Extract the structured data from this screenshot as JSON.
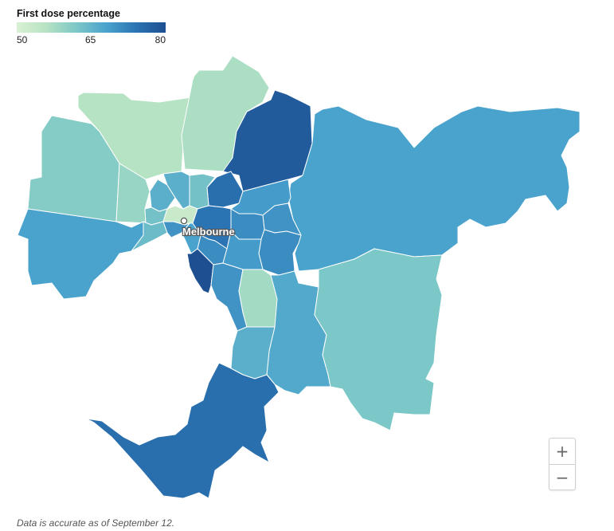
{
  "legend": {
    "title": "First dose percentage",
    "ticks": [
      "50",
      "65",
      "80"
    ],
    "scale": {
      "min": 50,
      "max": 80
    }
  },
  "map": {
    "city_label": "Melbourne",
    "regions": [
      {
        "id": "r01",
        "value": 56
      },
      {
        "id": "r02",
        "value": 57
      },
      {
        "id": "r03",
        "value": 61
      },
      {
        "id": "r04",
        "value": 59
      },
      {
        "id": "r05",
        "value": 78
      },
      {
        "id": "r06",
        "value": 68
      },
      {
        "id": "r07",
        "value": 68
      },
      {
        "id": "r08",
        "value": 66
      },
      {
        "id": "r09",
        "value": 75
      },
      {
        "id": "r10",
        "value": 69
      },
      {
        "id": "r11",
        "value": 70
      },
      {
        "id": "r12",
        "value": 71
      },
      {
        "id": "r13",
        "value": 66
      },
      {
        "id": "r14",
        "value": 63
      },
      {
        "id": "r15",
        "value": 63
      },
      {
        "id": "r16",
        "value": 64
      },
      {
        "id": "r17",
        "value": 53
      },
      {
        "id": "r18",
        "value": 74
      },
      {
        "id": "r19",
        "value": 71
      },
      {
        "id": "r20",
        "value": 68
      },
      {
        "id": "r21",
        "value": 70
      },
      {
        "id": "r22",
        "value": 71
      },
      {
        "id": "r23",
        "value": 69
      },
      {
        "id": "r24",
        "value": 80
      },
      {
        "id": "r25",
        "value": 70
      },
      {
        "id": "r26",
        "value": 67
      },
      {
        "id": "r27",
        "value": 58
      },
      {
        "id": "r28",
        "value": 66
      },
      {
        "id": "r29",
        "value": 62
      },
      {
        "id": "r30",
        "value": 66
      },
      {
        "id": "r31",
        "value": 75
      }
    ]
  },
  "zoom": {
    "in_label": "+",
    "out_label": "−"
  },
  "footnote": "Data is accurate as of September 12."
}
